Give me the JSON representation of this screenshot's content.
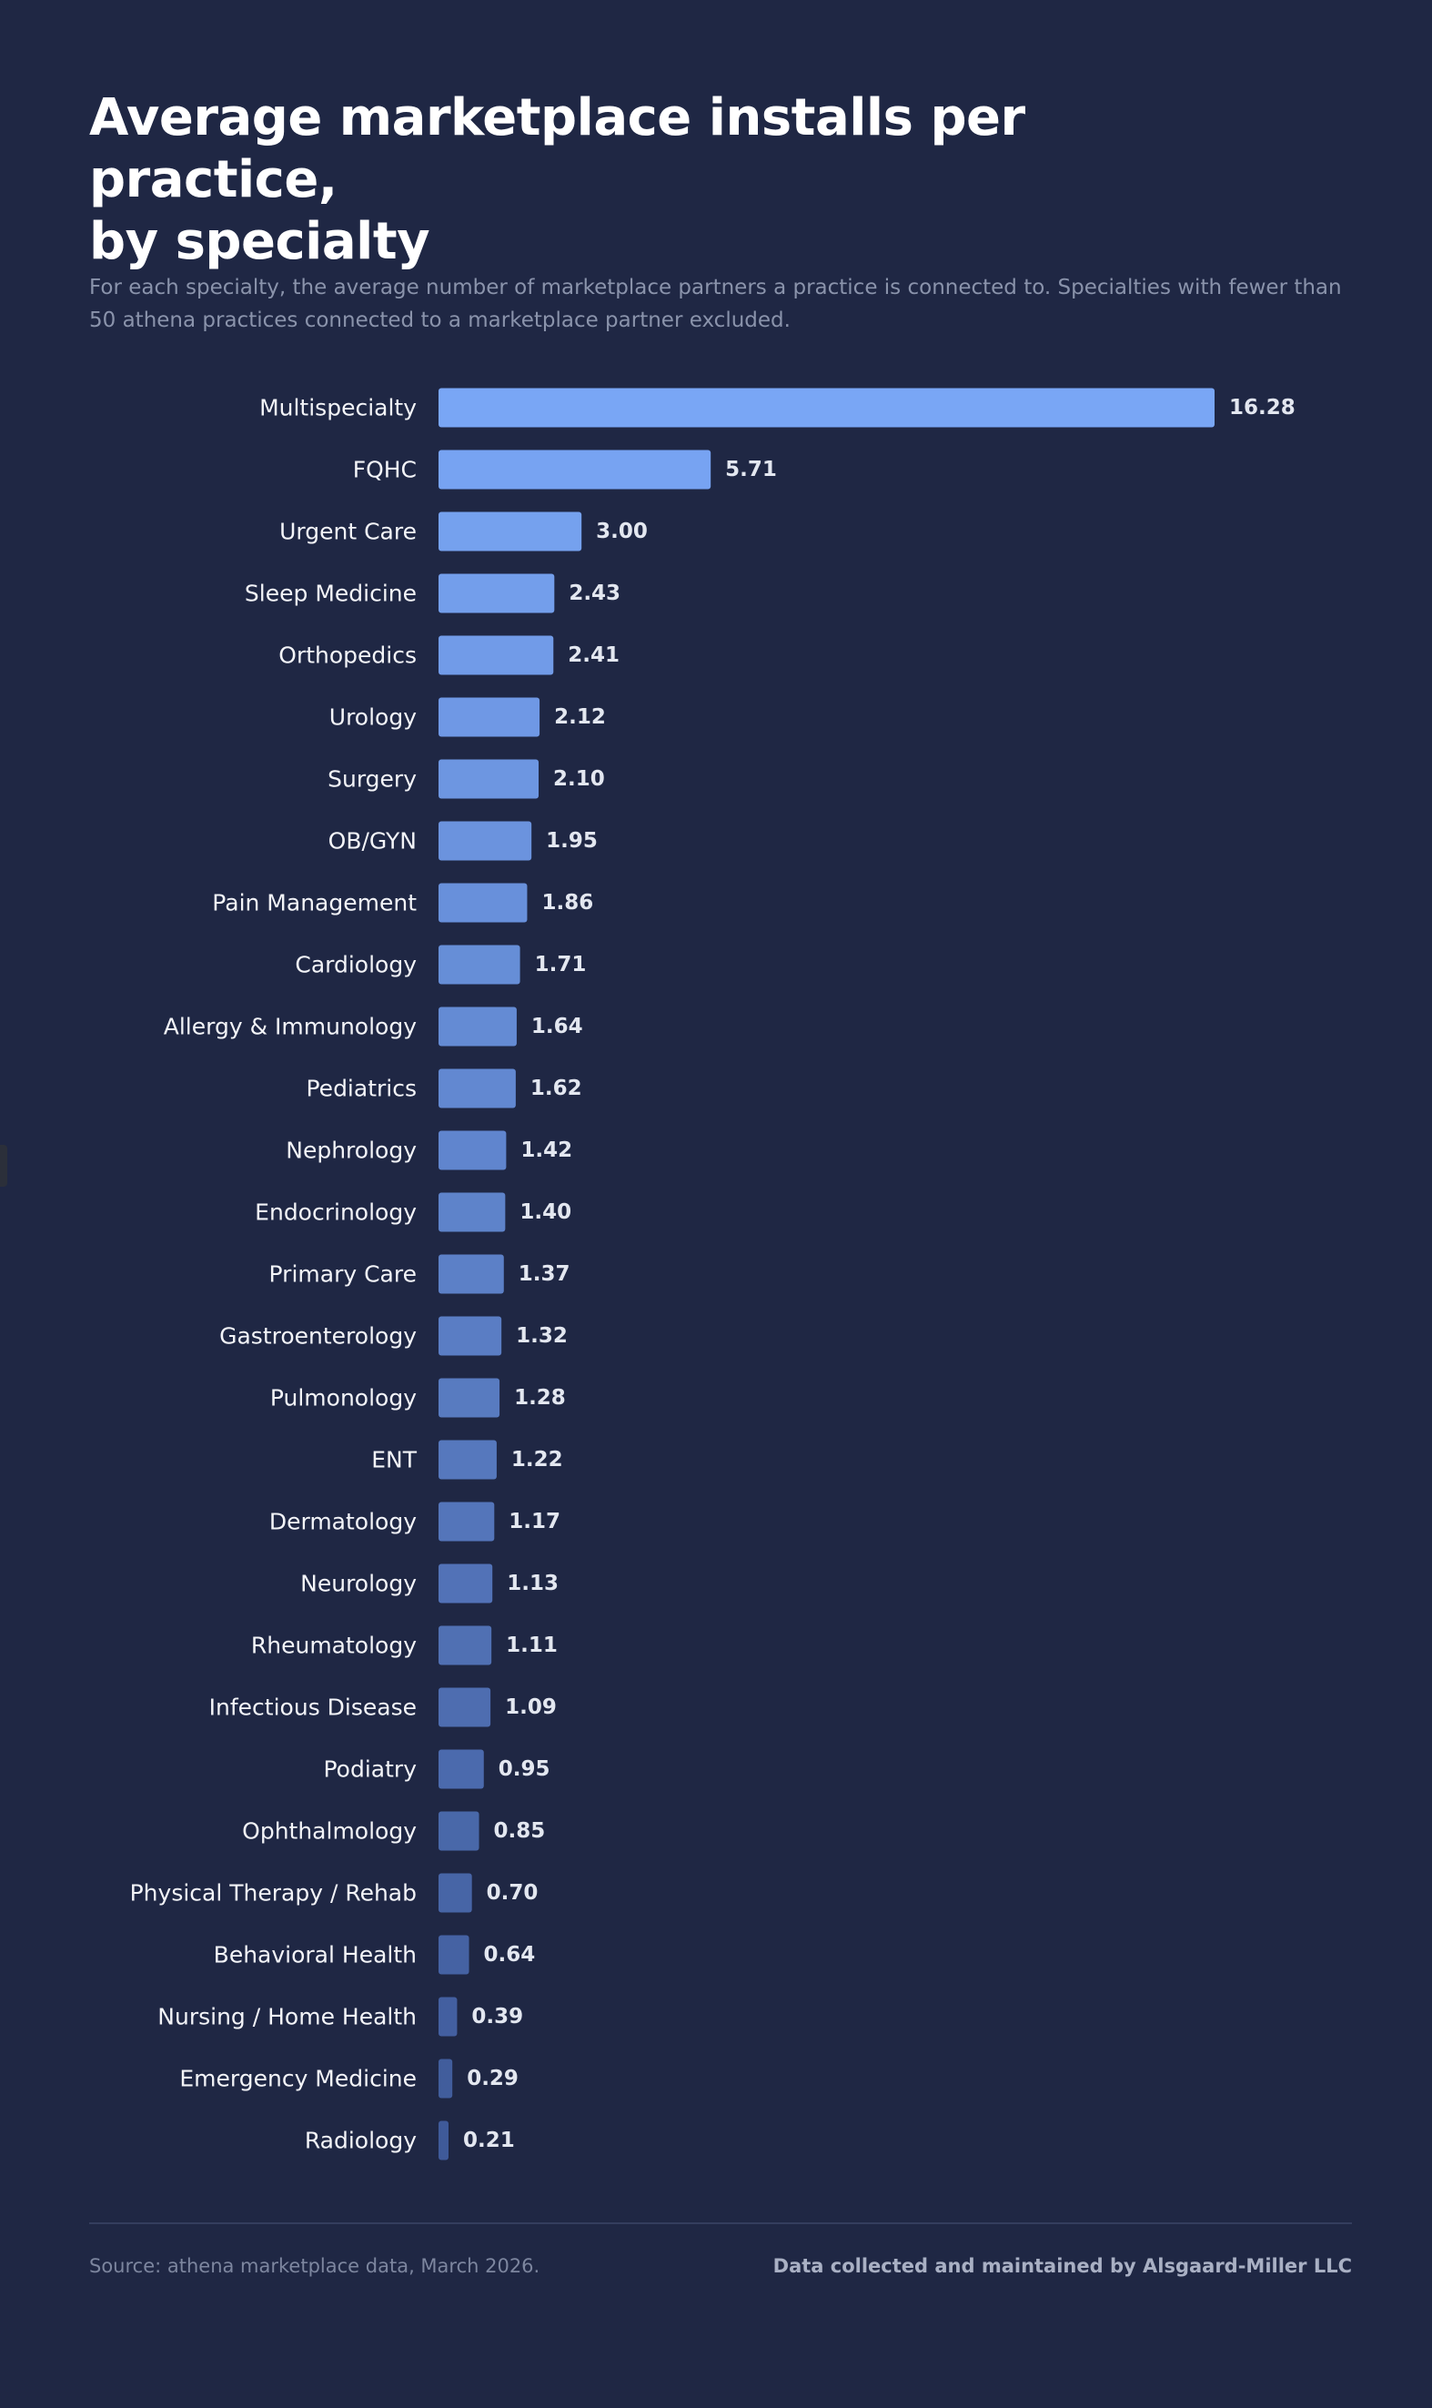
{
  "title": "Average marketplace installs per practice,\nby specialty",
  "subtitle": "For each specialty, the average number of marketplace partners a practice is connected to. Specialties with fewer than 50 athena practices connected to a marketplace partner excluded.",
  "footer": {
    "source": "Source: athena marketplace data, March 2026.",
    "credit": "Data collected and maintained by Alsgaard-Miller LLC"
  },
  "colors": {
    "background": "#1f2744",
    "bar_top": "#79a6f5",
    "bar_bottom": "#3f5a99"
  },
  "chart_data": {
    "type": "bar",
    "orientation": "horizontal",
    "categories": [
      "Multispecialty",
      "FQHC",
      "Urgent Care",
      "Sleep Medicine",
      "Orthopedics",
      "Urology",
      "Surgery",
      "OB/GYN",
      "Pain Management",
      "Cardiology",
      "Allergy & Immunology",
      "Pediatrics",
      "Nephrology",
      "Endocrinology",
      "Primary Care",
      "Gastroenterology",
      "Pulmonology",
      "ENT",
      "Dermatology",
      "Neurology",
      "Rheumatology",
      "Infectious Disease",
      "Podiatry",
      "Ophthalmology",
      "Physical Therapy / Rehab",
      "Behavioral Health",
      "Nursing / Home Health",
      "Emergency Medicine",
      "Radiology"
    ],
    "values": [
      16.28,
      5.71,
      3.0,
      2.43,
      2.41,
      2.12,
      2.1,
      1.95,
      1.86,
      1.71,
      1.64,
      1.62,
      1.42,
      1.4,
      1.37,
      1.32,
      1.28,
      1.22,
      1.17,
      1.13,
      1.11,
      1.09,
      0.95,
      0.85,
      0.7,
      0.64,
      0.39,
      0.29,
      0.21
    ],
    "value_labels": [
      "16.28",
      "5.71",
      "3.00",
      "2.43",
      "2.41",
      "2.12",
      "2.10",
      "1.95",
      "1.86",
      "1.71",
      "1.64",
      "1.62",
      "1.42",
      "1.40",
      "1.37",
      "1.32",
      "1.28",
      "1.22",
      "1.17",
      "1.13",
      "1.11",
      "1.09",
      "0.95",
      "0.85",
      "0.70",
      "0.64",
      "0.39",
      "0.29",
      "0.21"
    ],
    "xlim": [
      0,
      16.28
    ],
    "grid": false,
    "legend": "none",
    "sorted": "descending"
  }
}
